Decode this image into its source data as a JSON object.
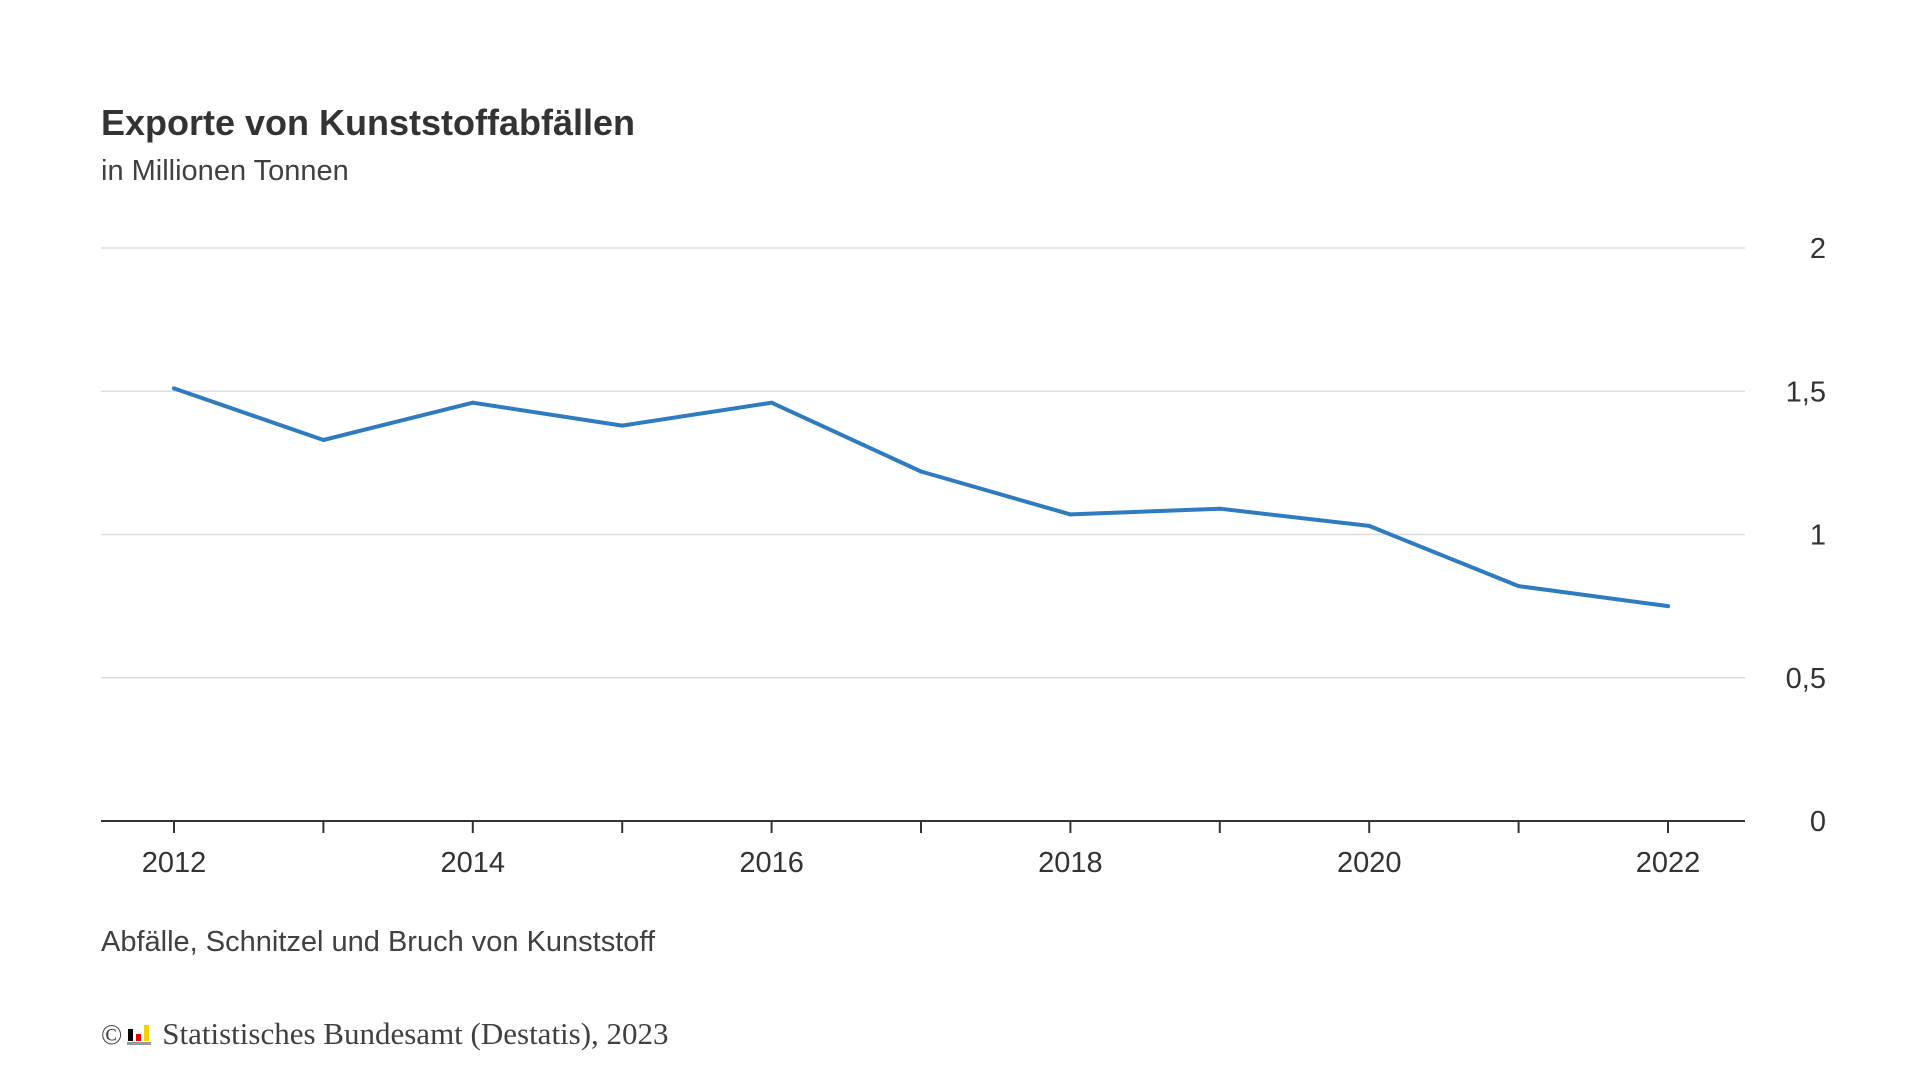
{
  "title": "Exporte von Kunststoffabfällen",
  "subtitle": "in Millionen Tonnen",
  "note": "Abfälle, Schnitzel und Bruch von Kunststoff",
  "credit": {
    "copyright_symbol": "©",
    "text": "Statistisches Bundesamt (Destatis), 2023",
    "logo_icon": "destatis-logo-icon"
  },
  "colors": {
    "line": "#2e7bbf",
    "grid": "#dddddd",
    "axis": "#333333",
    "logo_black": "#000000",
    "logo_red": "#dd0000",
    "logo_gold": "#ffcc00"
  },
  "chart_data": {
    "type": "line",
    "title": "Exporte von Kunststoffabfällen",
    "subtitle": "in Millionen Tonnen",
    "xlabel": "",
    "ylabel": "",
    "x": [
      2012,
      2013,
      2014,
      2015,
      2016,
      2017,
      2018,
      2019,
      2020,
      2021,
      2022
    ],
    "x_tick_labels": [
      "2012",
      "2014",
      "2016",
      "2018",
      "2020",
      "2022"
    ],
    "x_tick_values": [
      2012,
      2014,
      2016,
      2018,
      2020,
      2022
    ],
    "ylim": [
      0,
      2
    ],
    "y_ticks": [
      0,
      0.5,
      1,
      1.5,
      2
    ],
    "y_tick_labels": [
      "0",
      "0,5",
      "1",
      "1,5",
      "2"
    ],
    "y_axis_position": "right",
    "grid": true,
    "series": [
      {
        "values": [
          1.51,
          1.33,
          1.46,
          1.38,
          1.46,
          1.22,
          1.07,
          1.09,
          1.03,
          0.82,
          0.75
        ]
      }
    ]
  }
}
